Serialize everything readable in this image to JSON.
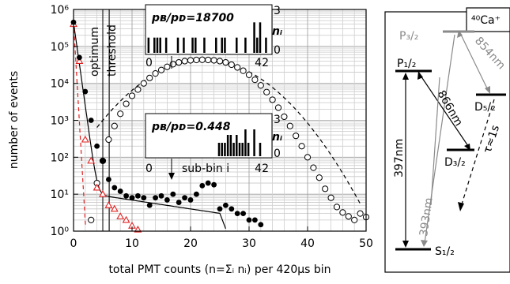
{
  "chart_data": [
    {
      "type": "scatter",
      "xlabel": "total PMT counts (n=Σᵢ nᵢ) per 420μs bin",
      "ylabel": "number of events",
      "xlim": [
        0,
        50
      ],
      "ylim_log10": [
        0,
        6
      ],
      "yscale": "log",
      "grid": true,
      "x_ticks": [
        "0",
        "10",
        "20",
        "30",
        "40",
        "50"
      ],
      "y_ticks": [
        "10⁰",
        "10¹",
        "10²",
        "10³",
        "10⁴",
        "10⁵",
        "10⁶"
      ],
      "annotations": {
        "optimum": "optimum",
        "threshold": "threshold",
        "optimum_x": 5,
        "threshold_x": 6.1
      },
      "series": [
        {
          "marker": "filled-circle",
          "color": "#000000",
          "points": [
            [
              0,
              450000
            ],
            [
              1,
              50000
            ],
            [
              2,
              6000
            ],
            [
              3,
              1000
            ],
            [
              4,
              200
            ],
            [
              5,
              80
            ],
            [
              6,
              25
            ],
            [
              7,
              15
            ],
            [
              8,
              12
            ],
            [
              9,
              9
            ],
            [
              10,
              8
            ],
            [
              11,
              9
            ],
            [
              12,
              8
            ],
            [
              13,
              5
            ],
            [
              14,
              8
            ],
            [
              15,
              9
            ],
            [
              16,
              7
            ],
            [
              17,
              10
            ],
            [
              18,
              6
            ],
            [
              19,
              8
            ],
            [
              20,
              7
            ],
            [
              21,
              10
            ],
            [
              22,
              17
            ],
            [
              23,
              20
            ],
            [
              24,
              18
            ],
            [
              25,
              4
            ],
            [
              26,
              5
            ],
            [
              27,
              4
            ],
            [
              28,
              3
            ],
            [
              29,
              3
            ],
            [
              30,
              2
            ],
            [
              31,
              2
            ],
            [
              32,
              1.5
            ]
          ]
        },
        {
          "marker": "open-circle",
          "color": "#000000",
          "points": [
            [
              3,
              2
            ],
            [
              4,
              20
            ],
            [
              5,
              80
            ],
            [
              6,
              300
            ],
            [
              7,
              700
            ],
            [
              8,
              1500
            ],
            [
              9,
              2800
            ],
            [
              10,
              4600
            ],
            [
              11,
              6800
            ],
            [
              12,
              10000
            ],
            [
              13,
              14000
            ],
            [
              14,
              18500
            ],
            [
              15,
              23000
            ],
            [
              16,
              28000
            ],
            [
              17,
              33000
            ],
            [
              18,
              37000
            ],
            [
              19,
              40000
            ],
            [
              20,
              42000
            ],
            [
              21,
              43000
            ],
            [
              22,
              43500
            ],
            [
              23,
              43000
            ],
            [
              24,
              42000
            ],
            [
              25,
              40000
            ],
            [
              26,
              37000
            ],
            [
              27,
              32000
            ],
            [
              28,
              27000
            ],
            [
              29,
              22000
            ],
            [
              30,
              17000
            ],
            [
              31,
              12500
            ],
            [
              32,
              8800
            ],
            [
              33,
              5800
            ],
            [
              34,
              3600
            ],
            [
              35,
              2200
            ],
            [
              36,
              1250
            ],
            [
              37,
              700
            ],
            [
              38,
              380
            ],
            [
              39,
              200
            ],
            [
              40,
              100
            ],
            [
              41,
              52
            ],
            [
              42,
              28
            ],
            [
              43,
              14
            ],
            [
              44,
              8
            ],
            [
              45,
              4.5
            ],
            [
              46,
              3.2
            ],
            [
              47,
              2.5
            ],
            [
              48,
              2
            ],
            [
              49,
              3
            ],
            [
              50,
              2.4
            ]
          ]
        },
        {
          "marker": "open-triangle",
          "color": "#e02020",
          "points": [
            [
              0,
              400000
            ],
            [
              1,
              40000
            ],
            [
              2,
              300
            ],
            [
              3,
              80
            ],
            [
              4,
              15
            ],
            [
              5,
              10
            ],
            [
              6,
              5
            ],
            [
              7,
              4
            ],
            [
              8,
              2.5
            ],
            [
              9,
              2
            ],
            [
              10,
              1.4
            ],
            [
              11,
              1.1
            ]
          ]
        }
      ]
    },
    {
      "type": "bar",
      "ratio_label": "pʙ/pᴅ=18700",
      "x_ticks": [
        "0",
        "42"
      ],
      "y_ticks": [
        "0",
        "3"
      ],
      "ylabel": "nᵢ",
      "xlim": [
        0,
        42
      ],
      "ylim": [
        0,
        3
      ],
      "values": [
        1,
        0,
        1,
        1,
        1,
        0,
        1,
        0,
        0,
        0,
        1,
        0,
        1,
        0,
        0,
        1,
        1,
        0,
        0,
        1,
        0,
        0,
        0,
        1,
        0,
        1,
        1,
        0,
        0,
        0,
        1,
        0,
        0,
        1,
        0,
        0,
        2,
        1,
        2,
        0,
        1,
        0
      ]
    },
    {
      "type": "bar",
      "ratio_label": "pʙ/pᴅ=0.448",
      "x_ticks": [
        "0",
        "42"
      ],
      "y_ticks": [
        "0",
        "3"
      ],
      "ylabel": "nᵢ",
      "xlim": [
        0,
        42
      ],
      "ylim": [
        0,
        3
      ],
      "xlabel": "sub-bin i",
      "values": [
        0,
        0,
        0,
        0,
        0,
        0,
        0,
        0,
        0,
        0,
        0,
        0,
        0,
        0,
        0,
        0,
        0,
        0,
        0,
        0,
        0,
        0,
        0,
        0,
        1,
        1,
        1,
        2,
        2,
        1,
        2,
        1,
        1,
        2,
        1,
        0,
        2,
        0,
        1,
        0,
        0,
        0
      ]
    }
  ],
  "diagram": {
    "ion_label": "⁴⁰Ca⁺",
    "levels": {
      "p32": "P₃/₂",
      "p12": "P₁/₂",
      "d52": "D₅/₂",
      "d32": "D₃/₂",
      "s12": "S₁/₂"
    },
    "transitions": {
      "t854": "854nm",
      "t866": "866nm",
      "t397": "397nm",
      "t393": "393nm",
      "tau": "τ≈1s"
    },
    "colors": {
      "strong": "#000000",
      "weak": "#8a8a8a",
      "red": "#e02020"
    }
  }
}
